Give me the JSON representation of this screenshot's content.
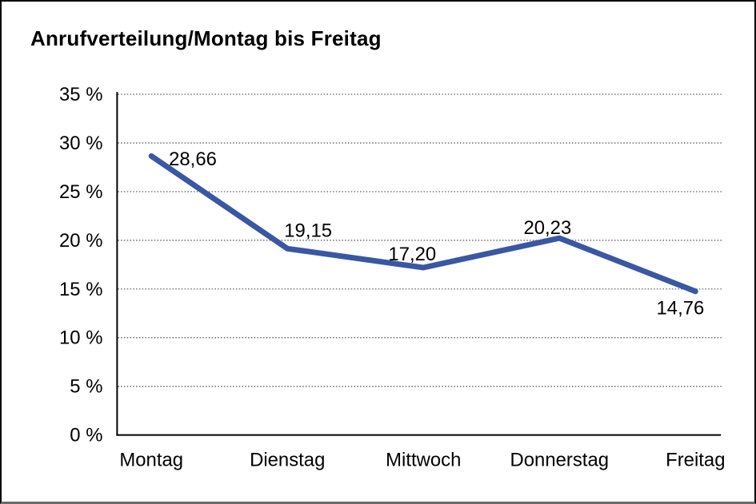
{
  "chart_data": {
    "type": "line",
    "title": "Anrufverteilung/Montag bis Freitag",
    "categories": [
      "Montag",
      "Dienstag",
      "Mittwoch",
      "Donnerstag",
      "Freitag"
    ],
    "values": [
      28.66,
      19.15,
      17.2,
      20.23,
      14.76
    ],
    "value_labels": [
      "28,66",
      "19,15",
      "17,20",
      "20,23",
      "14,76"
    ],
    "y_tick_labels": [
      "35 %",
      "30 %",
      "25 %",
      "20 %",
      "15 %",
      "10 %",
      "5 %",
      "0 %"
    ],
    "ylim": [
      0,
      35
    ],
    "y_tick_step": 5,
    "xlabel": "",
    "ylabel": "",
    "legend": "none",
    "grid": "horizontal-dotted",
    "line_color": "#3A57A4",
    "grid_color": "#4d4d4d",
    "axis_color": "#000000",
    "text_color": "#000000"
  }
}
